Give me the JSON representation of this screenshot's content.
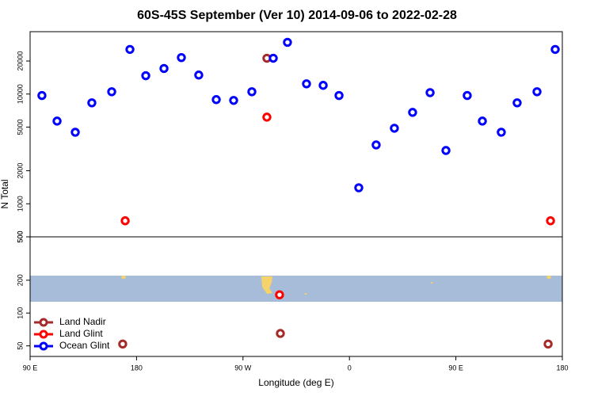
{
  "chart_data": [
    {
      "type": "scatter",
      "title": "60S-45S September (Ver 10)   2014-09-06 to 2022-02-28",
      "ylabel": "N Total",
      "log_y": true,
      "xlim": [
        90,
        540
      ],
      "ylim": [
        500,
        37000
      ],
      "yticks": [
        500,
        1000,
        2000,
        5000,
        10000,
        20000
      ],
      "series": [
        {
          "color": "#a52a2a",
          "x": [
            290.2
          ],
          "values": [
            21200
          ]
        },
        {
          "color": "#ff0000",
          "x": [
            170.4,
            290.2,
            530.0
          ],
          "values": [
            700,
            6160,
            700
          ]
        },
        {
          "color": "#0000ff",
          "x": [
            100.0,
            112.8,
            128.2,
            142.2,
            159.0,
            174.4,
            187.8,
            203.2,
            217.9,
            232.6,
            247.4,
            262.1,
            277.5,
            295.6,
            307.6,
            323.7,
            337.8,
            351.2,
            367.9,
            382.6,
            398.0,
            413.4,
            428.2,
            441.6,
            459.6,
            472.4,
            488.4,
            501.8,
            518.6,
            534.0
          ],
          "values": [
            9700,
            5670,
            4490,
            8320,
            10500,
            25500,
            14700,
            17100,
            21500,
            14900,
            8900,
            8750,
            10500,
            21200,
            29600,
            12400,
            12000,
            9700,
            1400,
            3440,
            4880,
            6810,
            10300,
            3060,
            9700,
            5670,
            4490,
            8320,
            10500,
            25500
          ]
        }
      ]
    },
    {
      "type": "scatter",
      "xlabel": "Longitude (deg E)",
      "log_y": true,
      "xlim": [
        90,
        540
      ],
      "ylim": [
        40,
        500
      ],
      "yticks": [
        50,
        100,
        200,
        500
      ],
      "xticks": [
        {
          "value": 90,
          "label": "90 E"
        },
        {
          "value": 180,
          "label": "180"
        },
        {
          "value": 270,
          "label": "90 W"
        },
        {
          "value": 360,
          "label": "0"
        },
        {
          "value": 450,
          "label": "90 E"
        },
        {
          "value": 540,
          "label": "180"
        }
      ],
      "legend": "bottom-left",
      "series": [
        {
          "name": "Land Nadir",
          "color": "#a52a2a",
          "x": [
            168.3,
            301.6,
            528.0
          ],
          "values": [
            52,
            65,
            52
          ]
        },
        {
          "name": "Land Glint",
          "color": "#ff0000",
          "x": [
            300.9
          ],
          "values": [
            147
          ]
        },
        {
          "name": "Ocean Glint",
          "color": "#0000ff",
          "x": [],
          "values": []
        }
      ]
    }
  ]
}
